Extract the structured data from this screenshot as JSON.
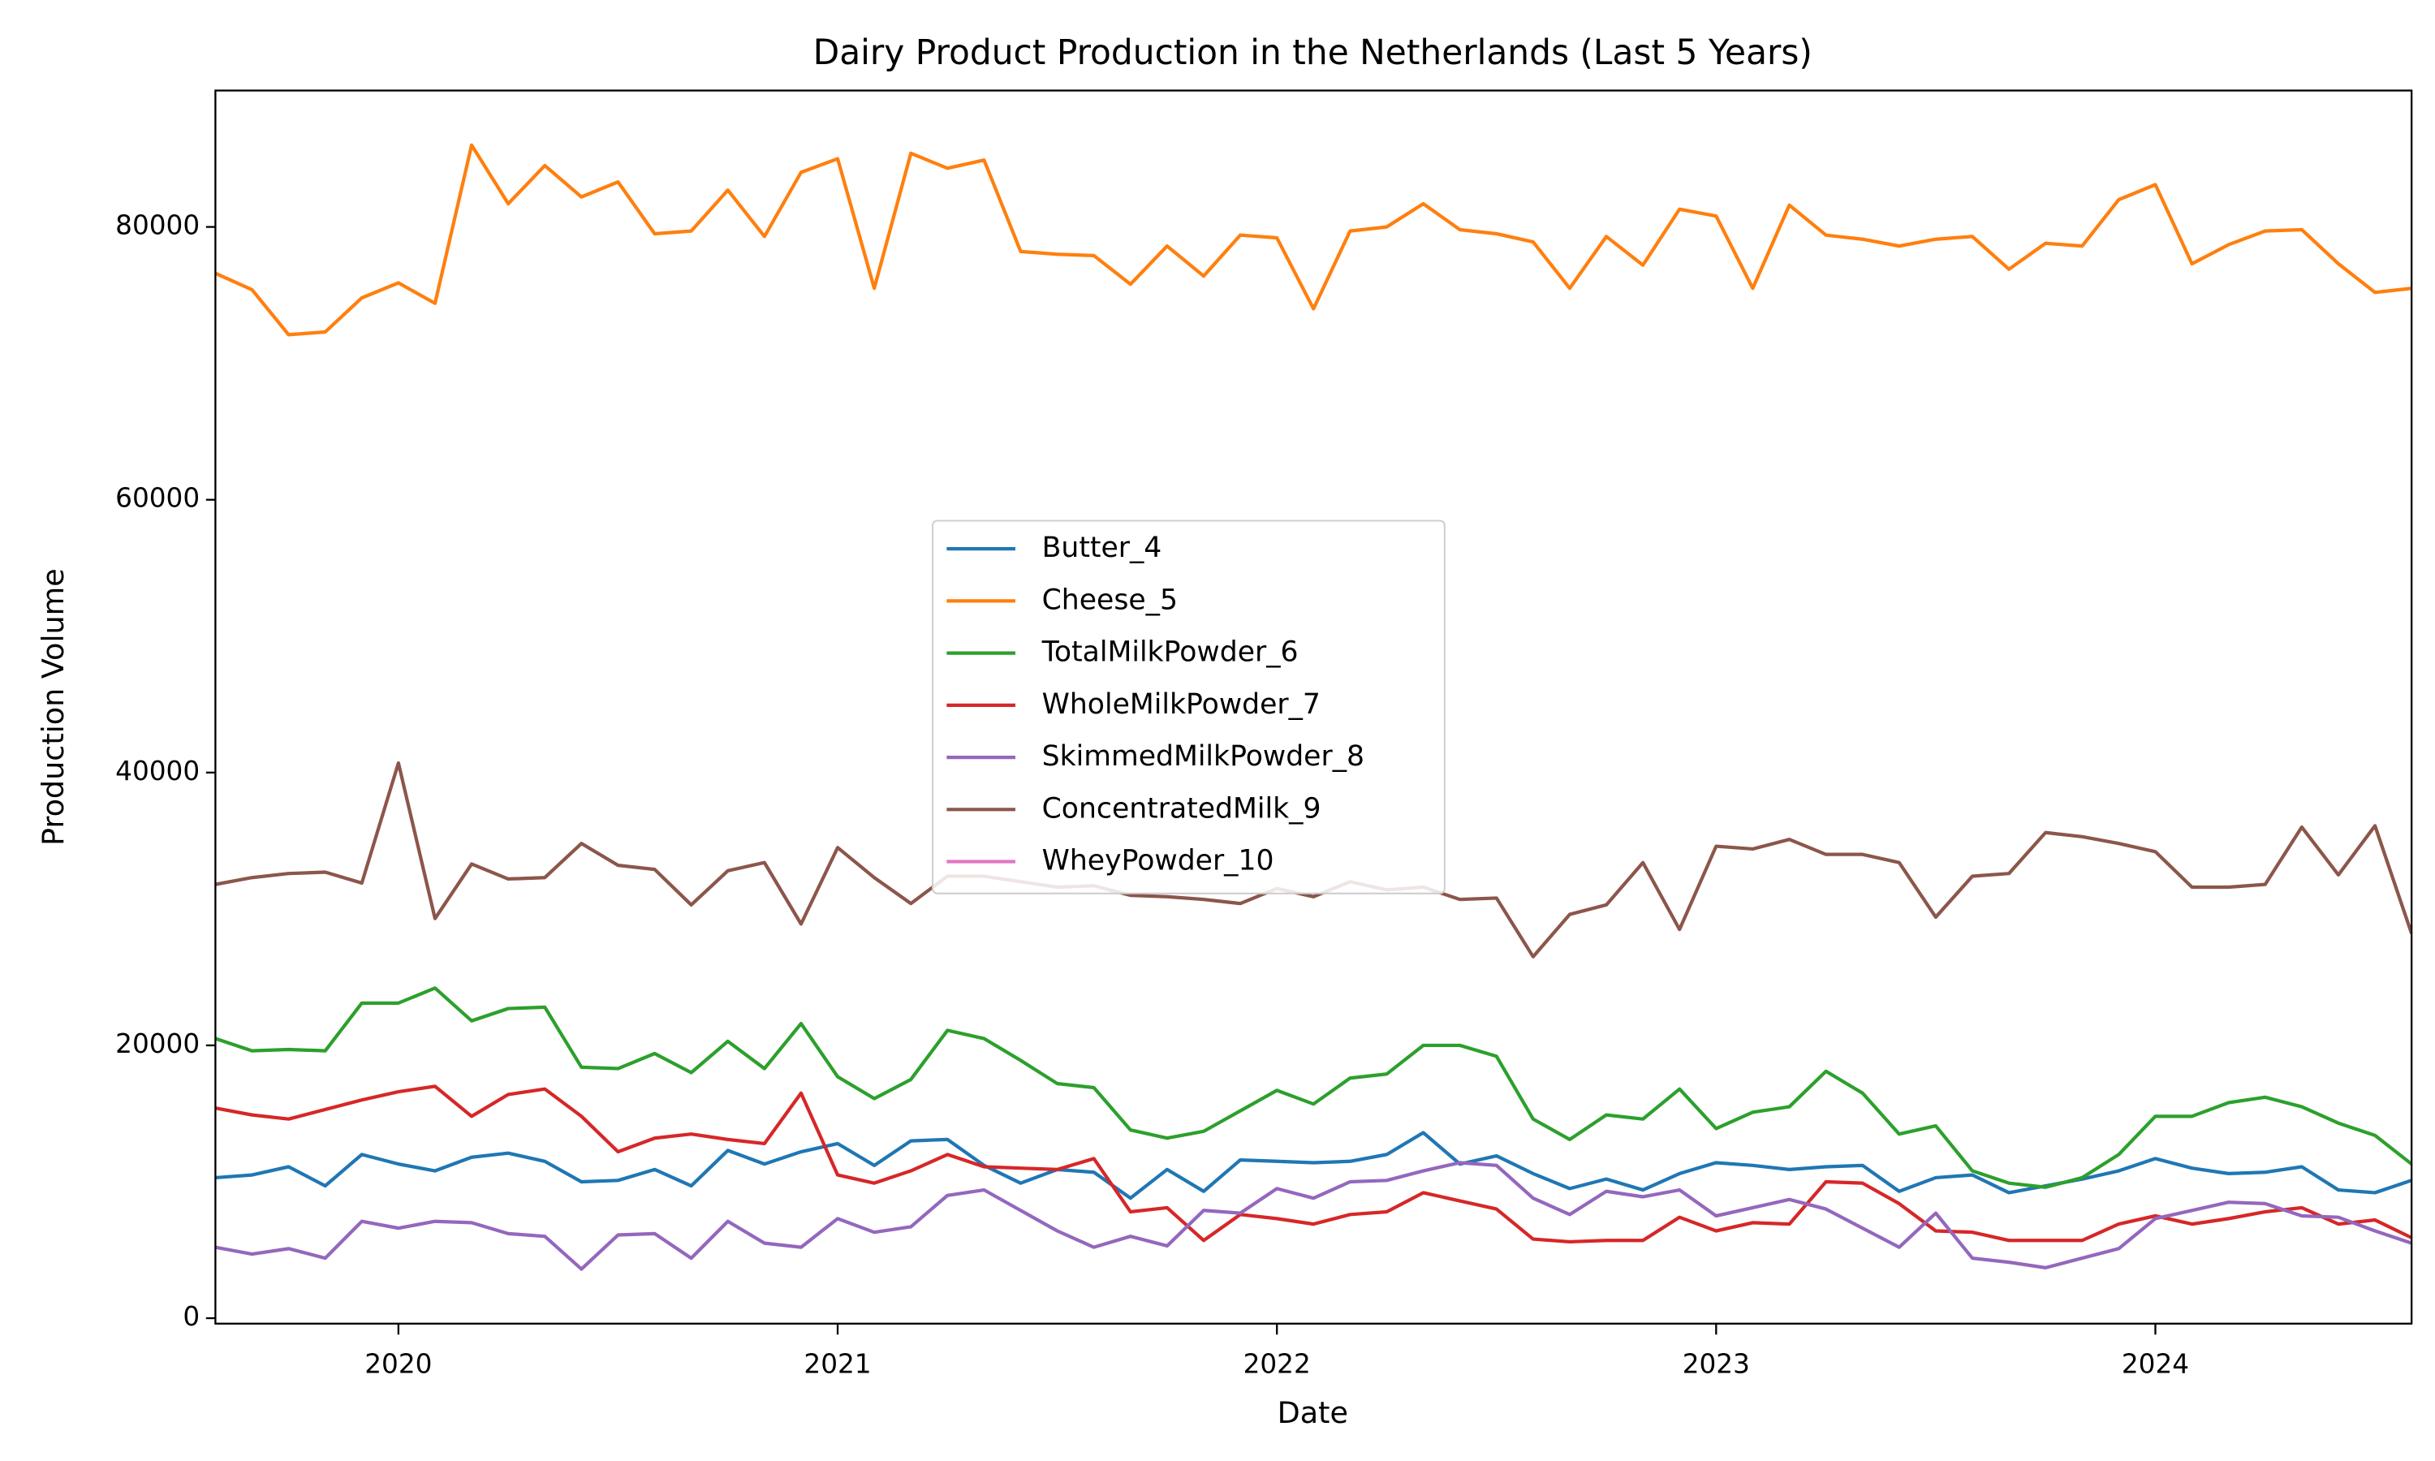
{
  "chart_data": {
    "type": "line",
    "title": "Dairy Product Production in the Netherlands (Last 5 Years)",
    "xlabel": "Date",
    "ylabel": "Production Volume",
    "x": [
      "2019-08",
      "2019-09",
      "2019-10",
      "2019-11",
      "2019-12",
      "2020-01",
      "2020-02",
      "2020-03",
      "2020-04",
      "2020-05",
      "2020-06",
      "2020-07",
      "2020-08",
      "2020-09",
      "2020-10",
      "2020-11",
      "2020-12",
      "2021-01",
      "2021-02",
      "2021-03",
      "2021-04",
      "2021-05",
      "2021-06",
      "2021-07",
      "2021-08",
      "2021-09",
      "2021-10",
      "2021-11",
      "2021-12",
      "2022-01",
      "2022-02",
      "2022-03",
      "2022-04",
      "2022-05",
      "2022-06",
      "2022-07",
      "2022-08",
      "2022-09",
      "2022-10",
      "2022-11",
      "2022-12",
      "2023-01",
      "2023-02",
      "2023-03",
      "2023-04",
      "2023-05",
      "2023-06",
      "2023-07",
      "2023-08",
      "2023-09",
      "2023-10",
      "2023-11",
      "2023-12",
      "2024-01",
      "2024-02",
      "2024-03",
      "2024-04",
      "2024-05",
      "2024-06",
      "2024-07",
      "2024-08"
    ],
    "series": [
      {
        "name": "Butter_4",
        "color": "#1f77b4",
        "values": [
          10300,
          10500,
          11100,
          9700,
          12000,
          11300,
          10800,
          11800,
          12100,
          11500,
          10000,
          10100,
          10900,
          9700,
          12300,
          11300,
          12200,
          12800,
          11200,
          13000,
          13100,
          11200,
          9900,
          10900,
          10700,
          8800,
          10900,
          9300,
          11600,
          11500,
          11400,
          11500,
          12000,
          13600,
          11300,
          11900,
          10600,
          9500,
          10200,
          9400,
          10600,
          11400,
          11200,
          10900,
          11100,
          11200,
          9300,
          10300,
          10500,
          9200,
          9700,
          10200,
          10800,
          11700,
          11000,
          10600,
          10700,
          11100,
          9400,
          9200,
          10100
        ]
      },
      {
        "name": "Cheese_5",
        "color": "#ff7f0e",
        "values": [
          76600,
          75400,
          72100,
          72300,
          74800,
          75900,
          74400,
          86000,
          81700,
          84500,
          82200,
          83300,
          79500,
          79700,
          82700,
          79300,
          84000,
          85000,
          75500,
          85400,
          84300,
          84900,
          78200,
          78000,
          77900,
          75800,
          78600,
          76400,
          79400,
          79200,
          74000,
          79700,
          80000,
          81700,
          79800,
          79500,
          78900,
          75500,
          79300,
          77200,
          81300,
          80800,
          75500,
          81600,
          79400,
          79100,
          78600,
          79100,
          79300,
          76900,
          78800,
          78600,
          82000,
          83100,
          77300,
          78700,
          79700,
          79800,
          77300,
          75200,
          75500
        ]
      },
      {
        "name": "TotalMilkPowder_6",
        "color": "#2ca02c",
        "values": [
          20500,
          19600,
          19700,
          19600,
          23100,
          23100,
          24200,
          21800,
          22700,
          22800,
          18400,
          18300,
          19400,
          18000,
          20300,
          18300,
          21600,
          17700,
          16100,
          17500,
          21100,
          20500,
          18900,
          17200,
          16900,
          13800,
          13200,
          13700,
          15200,
          16700,
          15700,
          17600,
          17900,
          20000,
          20000,
          19200,
          14600,
          13100,
          14900,
          14600,
          16800,
          13900,
          15100,
          15500,
          18100,
          16500,
          13500,
          14100,
          10800,
          9900,
          9600,
          10300,
          12000,
          14800,
          14800,
          15800,
          16200,
          15500,
          14300,
          13400,
          11300
        ]
      },
      {
        "name": "WholeMilkPowder_7",
        "color": "#d62728",
        "values": [
          15400,
          14900,
          14600,
          15300,
          16000,
          16600,
          17000,
          14800,
          16400,
          16800,
          14800,
          12200,
          13200,
          13500,
          13100,
          12800,
          16500,
          10500,
          9900,
          10800,
          12000,
          11100,
          11000,
          10900,
          11700,
          7800,
          8100,
          5700,
          7600,
          7300,
          6900,
          7600,
          7800,
          9200,
          8600,
          8000,
          5800,
          5600,
          5700,
          5700,
          7400,
          6400,
          7000,
          6900,
          10000,
          9900,
          8400,
          6400,
          6300,
          5700,
          5700,
          5700,
          6900,
          7500,
          6900,
          7300,
          7800,
          8100,
          6900,
          7200,
          5900
        ]
      },
      {
        "name": "SkimmedMilkPowder_8",
        "color": "#9467bd",
        "values": [
          5200,
          4700,
          5100,
          4400,
          7100,
          6600,
          7100,
          7000,
          6200,
          6000,
          3600,
          6100,
          6200,
          4400,
          7100,
          5500,
          5200,
          7300,
          6300,
          6700,
          9000,
          9400,
          7900,
          6400,
          5200,
          6000,
          5300,
          7900,
          7700,
          9500,
          8800,
          10000,
          10100,
          10800,
          11400,
          11200,
          8800,
          7600,
          9300,
          8900,
          9400,
          7500,
          8100,
          8700,
          8000,
          6600,
          5200,
          7700,
          4400,
          4100,
          3700,
          4400,
          5100,
          7300,
          7900,
          8500,
          8400,
          7500,
          7400,
          6400,
          5500
        ]
      },
      {
        "name": "ConcentratedMilk_9",
        "color": "#8c564b",
        "values": [
          31800,
          32300,
          32600,
          32700,
          31900,
          40700,
          29300,
          33300,
          32200,
          32300,
          34800,
          33200,
          32900,
          30300,
          32800,
          33400,
          28900,
          34500,
          32300,
          30400,
          32400,
          32400,
          32000,
          31600,
          31700,
          31000,
          30900,
          30700,
          30400,
          31500,
          30900,
          32000,
          31400,
          31600,
          30700,
          30800,
          26500,
          29600,
          30300,
          33400,
          28500,
          34600,
          34400,
          35100,
          34000,
          34000,
          33400,
          29400,
          32400,
          32600,
          35600,
          35300,
          34800,
          34200,
          31600,
          31600,
          31800,
          36000,
          32500,
          36100,
          28200
        ]
      },
      {
        "name": "WheyPowder_10",
        "color": "#e377c2",
        "values": [
          null,
          null,
          null,
          null,
          null,
          null,
          null,
          null,
          null,
          null,
          null,
          null,
          null,
          null,
          null,
          null,
          null,
          null,
          null,
          null,
          null,
          null,
          null,
          null,
          null,
          null,
          null,
          null,
          null,
          null,
          null,
          null,
          null,
          null,
          null,
          null,
          null,
          null,
          null,
          null,
          null,
          null,
          null,
          null,
          null,
          null,
          null,
          null,
          null,
          null,
          null,
          null,
          null,
          null,
          null,
          null,
          null,
          null,
          null,
          null,
          null
        ]
      }
    ],
    "xlim": [
      "2019-08",
      "2024-08"
    ],
    "xticks": [
      {
        "value": "2020-01",
        "label": "2020"
      },
      {
        "value": "2021-01",
        "label": "2021"
      },
      {
        "value": "2022-01",
        "label": "2022"
      },
      {
        "value": "2023-01",
        "label": "2023"
      },
      {
        "value": "2024-01",
        "label": "2024"
      }
    ],
    "ylim": [
      -400,
      90000
    ],
    "yticks": [
      0,
      20000,
      40000,
      60000,
      80000
    ],
    "legend": "center",
    "grid": false
  }
}
